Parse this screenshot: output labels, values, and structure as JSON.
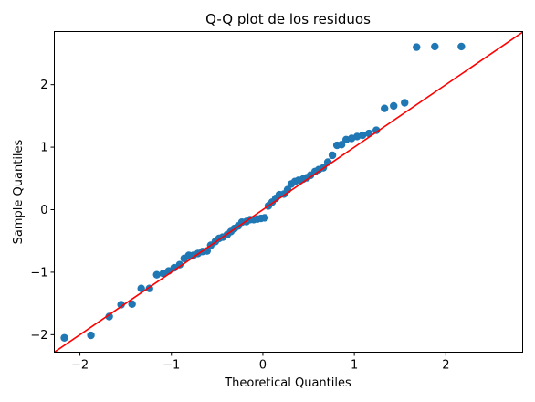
{
  "chart_data": {
    "type": "scatter",
    "title": "Q-Q plot de los residuos",
    "xlabel": "Theoretical Quantiles",
    "ylabel": "Sample Quantiles",
    "xlim": [
      -2.28,
      2.84
    ],
    "ylim": [
      -2.28,
      2.85
    ],
    "xticks": [
      -2,
      -1,
      0,
      1,
      2
    ],
    "yticks": [
      -2,
      -1,
      0,
      1,
      2
    ],
    "xtick_labels": [
      "−2",
      "−1",
      "0",
      "1",
      "2"
    ],
    "ytick_labels": [
      "−2",
      "−1",
      "0",
      "1",
      "2"
    ],
    "grid": false,
    "colors": {
      "points": "#1f77b4",
      "line": "#ff0000"
    },
    "reference_line": {
      "slope": 1,
      "intercept": 0
    },
    "series": [
      {
        "x": [
          -2.17,
          -1.88,
          -1.68,
          -1.55,
          -1.43,
          -1.33,
          -1.24,
          -1.16,
          -1.09,
          -1.03,
          -0.97,
          -0.91,
          -0.86,
          -0.81,
          -0.76,
          -0.71,
          -0.66,
          -0.61,
          -0.57,
          -0.52,
          -0.48,
          -0.44,
          -0.39,
          -0.35,
          -0.31,
          -0.27,
          -0.23,
          -0.18,
          -0.14,
          -0.1,
          -0.06,
          -0.02,
          0.02,
          0.06,
          0.1,
          0.14,
          0.18,
          0.23,
          0.27,
          0.31,
          0.35,
          0.39,
          0.44,
          0.48,
          0.52,
          0.57,
          0.61,
          0.66,
          0.71,
          0.76,
          0.81,
          0.86,
          0.91,
          0.97,
          1.03,
          1.09,
          1.16,
          1.24,
          1.33,
          1.43,
          1.55,
          1.68,
          1.88,
          2.17
        ],
        "y": [
          -2.05,
          -2.01,
          -1.71,
          -1.52,
          -1.51,
          -1.26,
          -1.26,
          -1.04,
          -1.02,
          -0.98,
          -0.93,
          -0.88,
          -0.78,
          -0.73,
          -0.73,
          -0.7,
          -0.67,
          -0.66,
          -0.57,
          -0.51,
          -0.46,
          -0.44,
          -0.4,
          -0.35,
          -0.3,
          -0.26,
          -0.2,
          -0.19,
          -0.16,
          -0.16,
          -0.15,
          -0.14,
          -0.13,
          0.06,
          0.12,
          0.18,
          0.24,
          0.25,
          0.32,
          0.41,
          0.45,
          0.47,
          0.49,
          0.51,
          0.55,
          0.61,
          0.64,
          0.67,
          0.76,
          0.87,
          1.03,
          1.04,
          1.12,
          1.14,
          1.17,
          1.19,
          1.22,
          1.27,
          1.62,
          1.66,
          1.71,
          2.6,
          2.61,
          2.61
        ]
      }
    ]
  }
}
